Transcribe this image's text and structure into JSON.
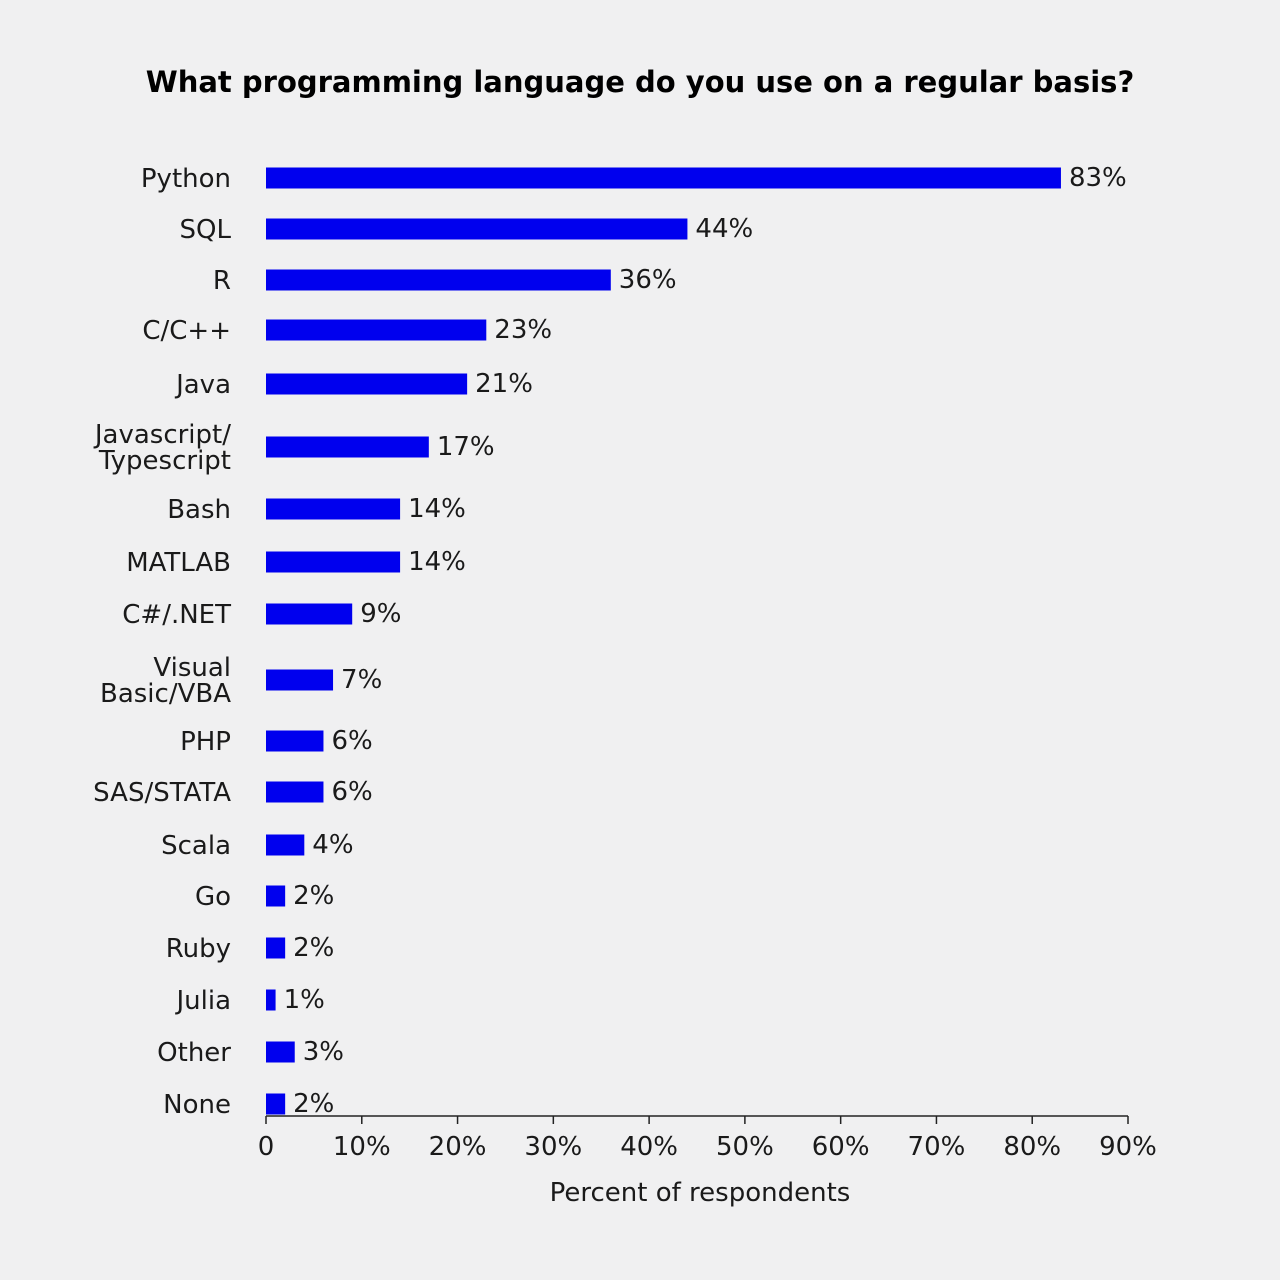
{
  "chart_data": {
    "type": "bar",
    "orientation": "horizontal",
    "title": "What programming language do you use on a regular basis?",
    "xlabel": "Percent of respondents",
    "ylabel": "",
    "categories": [
      [
        "Python"
      ],
      [
        "SQL"
      ],
      [
        "R"
      ],
      [
        "C/C++"
      ],
      [
        "Java"
      ],
      [
        "Javascript/",
        "Typescript"
      ],
      [
        "Bash"
      ],
      [
        "MATLAB"
      ],
      [
        "C#/.NET"
      ],
      [
        "Visual",
        "Basic/VBA"
      ],
      [
        "PHP"
      ],
      [
        "SAS/STATA"
      ],
      [
        "Scala"
      ],
      [
        "Go"
      ],
      [
        "Ruby"
      ],
      [
        "Julia"
      ],
      [
        "Other"
      ],
      [
        "None"
      ]
    ],
    "values": [
      83,
      44,
      36,
      23,
      21,
      17,
      14,
      14,
      9,
      7,
      6,
      6,
      4,
      2,
      2,
      1,
      3,
      2
    ],
    "value_labels": [
      "83%",
      "44%",
      "36%",
      "23%",
      "21%",
      "17%",
      "14%",
      "14%",
      "9%",
      "7%",
      "6%",
      "6%",
      "4%",
      "2%",
      "2%",
      "1%",
      "3%",
      "2%"
    ],
    "xlim": [
      0,
      90
    ],
    "xticks": [
      0,
      10,
      20,
      30,
      40,
      50,
      60,
      70,
      80,
      90
    ],
    "xtick_labels": [
      "0",
      "10%",
      "20%",
      "30%",
      "40%",
      "50%",
      "60%",
      "70%",
      "80%",
      "90%"
    ],
    "bar_color": "#0000ee",
    "background": "#f0f0f1",
    "grid": false,
    "legend": "none"
  }
}
